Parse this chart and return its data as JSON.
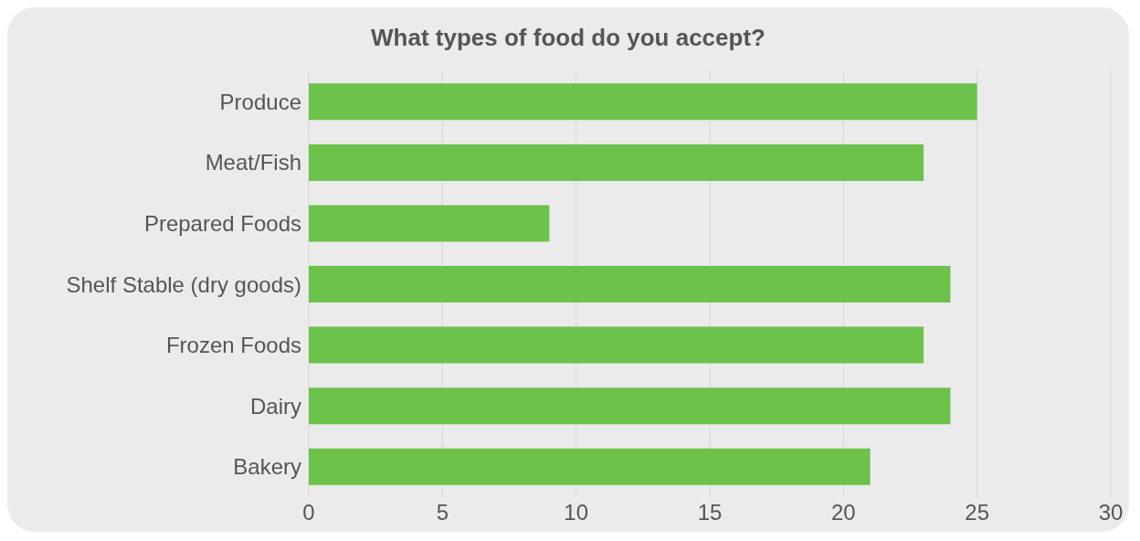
{
  "chart_data": {
    "type": "bar",
    "orientation": "horizontal",
    "title": "What types of food do you accept?",
    "categories": [
      "Produce",
      "Meat/Fish",
      "Prepared Foods",
      "Shelf Stable (dry goods)",
      "Frozen Foods",
      "Dairy",
      "Bakery"
    ],
    "values": [
      25,
      23,
      9,
      24,
      23,
      24,
      21
    ],
    "color": "#6cc24a",
    "xlim": [
      0,
      30
    ],
    "xticks": [
      0,
      5,
      10,
      15,
      20,
      25,
      30
    ],
    "grid": "x"
  }
}
